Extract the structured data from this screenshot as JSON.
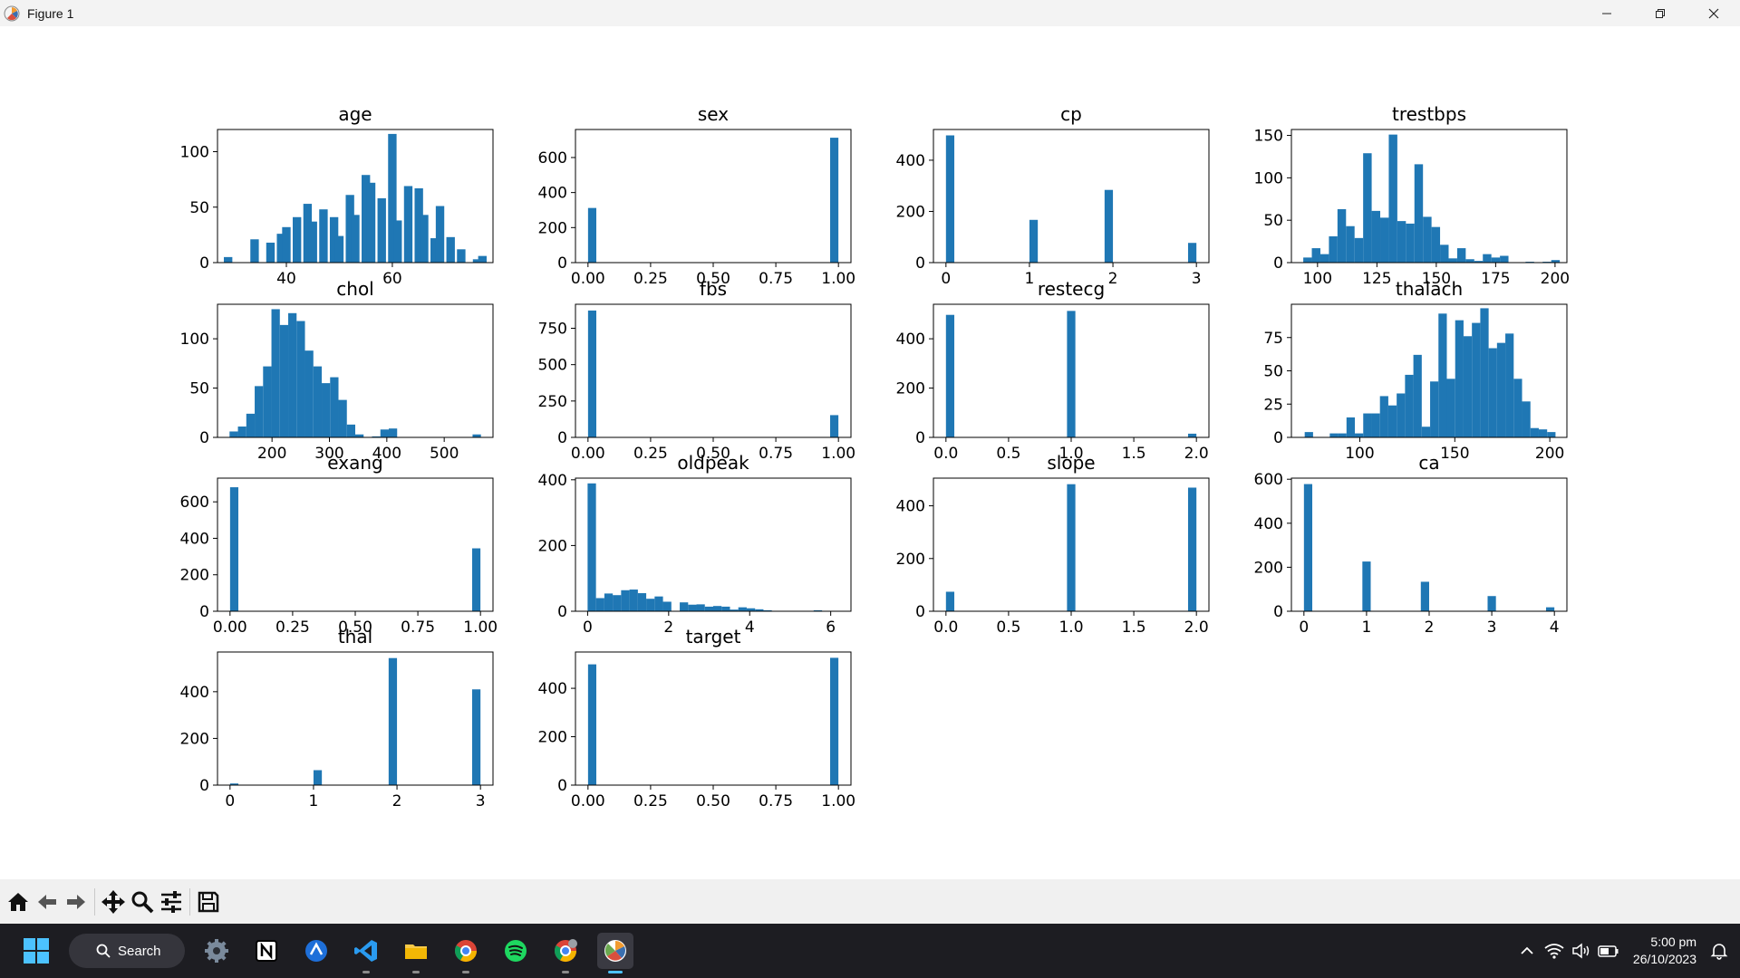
{
  "window": {
    "title": "Figure 1"
  },
  "theme": {
    "bar_color": "#1f77b4"
  },
  "chart_data": [
    {
      "type": "bar",
      "title": "age",
      "xlim": [
        27,
        79
      ],
      "ylim": [
        0,
        120
      ],
      "bin_width": 1.6,
      "bins": [
        29,
        31,
        34,
        36,
        37,
        39,
        40,
        42,
        44,
        45,
        47,
        49,
        50,
        52,
        53,
        55,
        56,
        58,
        60,
        61,
        63,
        65,
        66,
        68,
        69,
        71,
        73,
        74,
        76,
        77
      ],
      "values": [
        5,
        0,
        21,
        0,
        18,
        26,
        32,
        41,
        53,
        37,
        48,
        41,
        24,
        61,
        43,
        79,
        72,
        58,
        116,
        38,
        69,
        67,
        43,
        22,
        51,
        23,
        12,
        0,
        3,
        6
      ],
      "xticks": [
        40,
        60
      ],
      "xtick_labels": [
        "40",
        "60"
      ],
      "yticks": [
        0,
        50,
        100
      ]
    },
    {
      "type": "bar",
      "title": "sex",
      "xlim": [
        -0.05,
        1.05
      ],
      "ylim": [
        0,
        760
      ],
      "bin_width": 0.033,
      "bins": [
        0.0167,
        0.9833
      ],
      "values": [
        312,
        713
      ],
      "xticks": [
        0,
        0.25,
        0.5,
        0.75,
        1
      ],
      "xtick_labels": [
        "0.00",
        "0.25",
        "0.50",
        "0.75",
        "1.00"
      ],
      "yticks": [
        0,
        200,
        400,
        600
      ]
    },
    {
      "type": "bar",
      "title": "cp",
      "xlim": [
        -0.15,
        3.15
      ],
      "ylim": [
        0,
        520
      ],
      "bin_width": 0.1,
      "bins": [
        0.05,
        1.05,
        1.95,
        2.95
      ],
      "values": [
        497,
        167,
        284,
        77
      ],
      "xticks": [
        0,
        1,
        2,
        3
      ],
      "xtick_labels": [
        "0",
        "1",
        "2",
        "3"
      ],
      "yticks": [
        0,
        200,
        400
      ]
    },
    {
      "type": "bar",
      "title": "trestbps",
      "xlim": [
        89,
        205
      ],
      "ylim": [
        0,
        157
      ],
      "bin_width": 3.6,
      "bins": [
        95.8,
        99.4,
        103,
        106.6,
        110.2,
        113.8,
        117.4,
        121,
        124.6,
        128.2,
        131.8,
        135.4,
        139,
        142.6,
        146.2,
        149.8,
        153.4,
        157,
        160.6,
        164.2,
        167.8,
        171.4,
        175,
        178.6,
        182.2,
        185.8,
        189.4,
        193,
        196.6,
        200.2
      ],
      "values": [
        6,
        17,
        10,
        31,
        63,
        43,
        29,
        129,
        61,
        53,
        151,
        49,
        46,
        116,
        54,
        42,
        21,
        5,
        17,
        4,
        2,
        10,
        6,
        8,
        0,
        0,
        1,
        0,
        1,
        3
      ],
      "xticks": [
        100,
        125,
        150,
        175,
        200
      ],
      "xtick_labels": [
        "100",
        "125",
        "150",
        "175",
        "200"
      ],
      "yticks": [
        0,
        50,
        100,
        150
      ]
    },
    {
      "type": "bar",
      "title": "chol",
      "xlim": [
        105,
        585
      ],
      "ylim": [
        0,
        135
      ],
      "bin_width": 14.6,
      "bins": [
        133.3,
        147.9,
        162.5,
        177.1,
        191.7,
        206.3,
        220.9,
        235.5,
        250.1,
        264.7,
        279.3,
        293.9,
        308.5,
        323.1,
        337.7,
        352.3,
        366.9,
        381.5,
        396.1,
        410.7,
        425.3,
        439.9,
        454.5,
        469.1,
        483.7,
        498.3,
        512.9,
        527.5,
        542.1,
        556.7
      ],
      "values": [
        6,
        11,
        24,
        52,
        72,
        130,
        114,
        126,
        118,
        88,
        72,
        55,
        61,
        38,
        13,
        3,
        0,
        1,
        8,
        9,
        0,
        0,
        0,
        0,
        0,
        0,
        0,
        0,
        0,
        3
      ],
      "xticks": [
        200,
        300,
        400,
        500
      ],
      "xtick_labels": [
        "200",
        "300",
        "400",
        "500"
      ],
      "yticks": [
        0,
        50,
        100
      ]
    },
    {
      "type": "bar",
      "title": "fbs",
      "xlim": [
        -0.05,
        1.05
      ],
      "ylim": [
        0,
        915
      ],
      "bin_width": 0.033,
      "bins": [
        0.0167,
        0.9833
      ],
      "values": [
        872,
        153
      ],
      "xticks": [
        0,
        0.25,
        0.5,
        0.75,
        1
      ],
      "xtick_labels": [
        "0.00",
        "0.25",
        "0.50",
        "0.75",
        "1.00"
      ],
      "yticks": [
        0,
        250,
        500,
        750
      ]
    },
    {
      "type": "bar",
      "title": "restecg",
      "xlim": [
        -0.1,
        2.1
      ],
      "ylim": [
        0,
        540
      ],
      "bin_width": 0.0667,
      "bins": [
        0.0333,
        1.0,
        1.9667
      ],
      "values": [
        497,
        513,
        15
      ],
      "xticks": [
        0,
        0.5,
        1,
        1.5,
        2
      ],
      "xtick_labels": [
        "0.0",
        "0.5",
        "1.0",
        "1.5",
        "2.0"
      ],
      "yticks": [
        0,
        200,
        400
      ]
    },
    {
      "type": "bar",
      "title": "thalach",
      "xlim": [
        64,
        209
      ],
      "ylim": [
        0,
        100
      ],
      "bin_width": 4.4,
      "bins": [
        73.2,
        77.6,
        82,
        86.4,
        90.8,
        95.2,
        99.6,
        104,
        108.4,
        112.8,
        117.2,
        121.6,
        126,
        130.4,
        134.8,
        139.2,
        143.6,
        148,
        152.4,
        156.8,
        161.2,
        165.6,
        170,
        174.4,
        178.8,
        183.2,
        187.6,
        192,
        196.4,
        200.8
      ],
      "values": [
        4,
        0,
        0,
        3,
        3,
        15,
        3,
        18,
        18,
        31,
        24,
        33,
        47,
        62,
        8,
        42,
        93,
        44,
        88,
        76,
        86,
        97,
        67,
        71,
        78,
        44,
        27,
        7,
        6,
        4
      ],
      "xticks": [
        100,
        150,
        200
      ],
      "xtick_labels": [
        "100",
        "150",
        "200"
      ],
      "yticks": [
        0,
        25,
        50,
        75
      ]
    },
    {
      "type": "bar",
      "title": "exang",
      "xlim": [
        -0.05,
        1.05
      ],
      "ylim": [
        0,
        730
      ],
      "bin_width": 0.033,
      "bins": [
        0.0167,
        0.9833
      ],
      "values": [
        680,
        345
      ],
      "xticks": [
        0,
        0.25,
        0.5,
        0.75,
        1
      ],
      "xtick_labels": [
        "0.00",
        "0.25",
        "0.50",
        "0.75",
        "1.00"
      ],
      "yticks": [
        0,
        200,
        400,
        600
      ]
    },
    {
      "type": "bar",
      "title": "oldpeak",
      "xlim": [
        -0.3,
        6.5
      ],
      "ylim": [
        0,
        405
      ],
      "bin_width": 0.207,
      "bins": [
        0.103,
        0.31,
        0.517,
        0.723,
        0.93,
        1.137,
        1.343,
        1.55,
        1.757,
        1.963,
        2.17,
        2.377,
        2.583,
        2.79,
        2.997,
        3.203,
        3.41,
        3.617,
        3.823,
        4.03,
        4.237,
        4.443,
        4.65,
        4.857,
        5.063,
        5.27,
        5.477,
        5.683,
        5.89,
        6.097
      ],
      "values": [
        389,
        40,
        54,
        49,
        64,
        66,
        55,
        38,
        45,
        29,
        0,
        27,
        20,
        21,
        14,
        16,
        14,
        5,
        12,
        9,
        6,
        3,
        0,
        0,
        0,
        0,
        0,
        3,
        0,
        0
      ],
      "xticks": [
        0,
        2,
        4,
        6
      ],
      "xtick_labels": [
        "0",
        "2",
        "4",
        "6"
      ],
      "yticks": [
        0,
        200,
        400
      ]
    },
    {
      "type": "bar",
      "title": "slope",
      "xlim": [
        -0.1,
        2.1
      ],
      "ylim": [
        0,
        505
      ],
      "bin_width": 0.0667,
      "bins": [
        0.0333,
        1.0,
        1.9667
      ],
      "values": [
        74,
        482,
        469
      ],
      "xticks": [
        0,
        0.5,
        1,
        1.5,
        2
      ],
      "xtick_labels": [
        "0.0",
        "0.5",
        "1.0",
        "1.5",
        "2.0"
      ],
      "yticks": [
        0,
        200,
        400
      ]
    },
    {
      "type": "bar",
      "title": "ca",
      "xlim": [
        -0.2,
        4.2
      ],
      "ylim": [
        0,
        605
      ],
      "bin_width": 0.133,
      "bins": [
        0.0667,
        1.0,
        1.9333,
        3.0,
        3.9333
      ],
      "values": [
        578,
        226,
        134,
        69,
        18
      ],
      "xticks": [
        0,
        1,
        2,
        3,
        4
      ],
      "xtick_labels": [
        "0",
        "1",
        "2",
        "3",
        "4"
      ],
      "yticks": [
        0,
        200,
        400,
        600
      ]
    },
    {
      "type": "bar",
      "title": "thal",
      "xlim": [
        -0.15,
        3.15
      ],
      "ylim": [
        0,
        570
      ],
      "bin_width": 0.1,
      "bins": [
        0.05,
        1.05,
        1.95,
        2.95
      ],
      "values": [
        7,
        64,
        544,
        410
      ],
      "xticks": [
        0,
        1,
        2,
        3
      ],
      "xtick_labels": [
        "0",
        "1",
        "2",
        "3"
      ],
      "yticks": [
        0,
        200,
        400
      ]
    },
    {
      "type": "bar",
      "title": "target",
      "xlim": [
        -0.05,
        1.05
      ],
      "ylim": [
        0,
        550
      ],
      "bin_width": 0.033,
      "bins": [
        0.0167,
        0.9833
      ],
      "values": [
        499,
        526
      ],
      "xticks": [
        0,
        0.25,
        0.5,
        0.75,
        1
      ],
      "xtick_labels": [
        "0.00",
        "0.25",
        "0.50",
        "0.75",
        "1.00"
      ],
      "yticks": [
        0,
        200,
        400
      ]
    }
  ],
  "toolbar": {
    "buttons": [
      {
        "name": "home-icon"
      },
      {
        "name": "back-arrow-icon"
      },
      {
        "name": "forward-arrow-icon"
      },
      {
        "name": "pan-icon"
      },
      {
        "name": "zoom-icon"
      },
      {
        "name": "configure-subplots-icon"
      },
      {
        "name": "save-icon"
      }
    ]
  },
  "taskbar": {
    "search_label": "Search",
    "clock_time": "5:00 pm",
    "clock_date": "26/10/2023"
  }
}
